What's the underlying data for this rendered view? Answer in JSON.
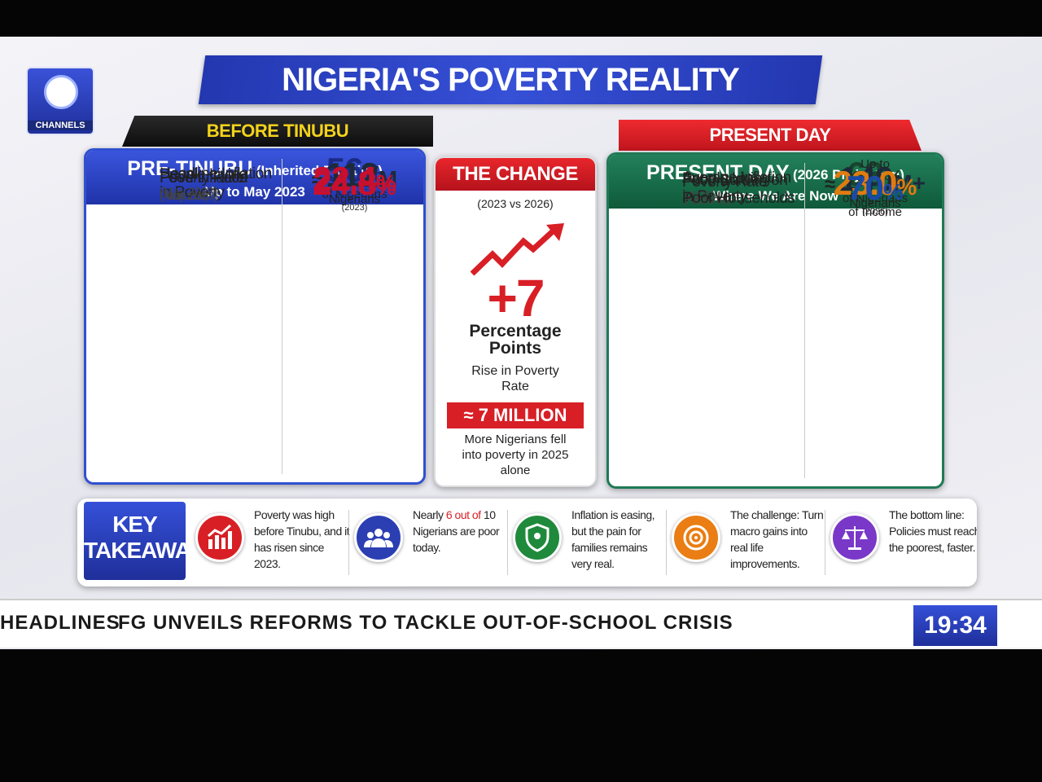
{
  "logo": {
    "label": "CHANNELS"
  },
  "header": {
    "title": "NIGERIA'S POVERTY REALITY"
  },
  "before": {
    "banner": "BEFORE TINUBU",
    "title": "PRE-TINUBU",
    "title_note": "(Inherited Position)",
    "subtitle": "Up to May 2023",
    "rows": [
      {
        "label": [
          "Poverty Rate"
        ],
        "sub": "(National)",
        "value": "56",
        "unit": "%",
        "notes": [
          "of Nigerians",
          "(2023)"
        ],
        "icon_color": "#2b3fb3",
        "value_color": "#1b2b86"
      },
      {
        "label": [
          "People Living",
          "in Poverty"
        ],
        "prefix": "≈",
        "value": "112",
        "unit": "M",
        "notes": [
          "Nigerians"
        ],
        "icon_color": "#1f8a3c",
        "value_color": "#1d2a3a"
      },
      {
        "label": [
          "Headline Inflation"
        ],
        "sub": "(May 2023)",
        "value": "22.4",
        "unit": "%",
        "notes": [],
        "icon_color": "#ea7d13",
        "value_color": "#c8102e"
      },
      {
        "label": [
          "Food Inflation"
        ],
        "sub": "(May 2023)",
        "value": "24.8",
        "unit": "%",
        "notes": [],
        "icon_color": "#d81f26",
        "value_color": "#c8102e"
      }
    ]
  },
  "change": {
    "title": "THE CHANGE",
    "subtitle": "(2023 vs 2026)",
    "big": "+7",
    "big_text": [
      "Percentage",
      "Points"
    ],
    "rise_text": [
      "Rise in Poverty",
      "Rate"
    ],
    "badge": "≈ 7 MILLION",
    "note": [
      "More Nigerians fell",
      "into poverty in 2025",
      "alone"
    ]
  },
  "present": {
    "banner": "PRESENT DAY",
    "title": "PRESENT DAY",
    "title_note": "(2026 Projection)",
    "subtitle": "Where We Are Now",
    "rows": [
      {
        "label": [
          "Poverty Rate"
        ],
        "sub": "(National)",
        "value": "63",
        "unit": "%",
        "notes": [
          "of Nigerians",
          "(2026)"
        ],
        "icon_color": "#1c5e3b",
        "value_color": "#17452e"
      },
      {
        "label": [
          "People Living",
          "in Poverty"
        ],
        "prefix": "≈",
        "value": "140",
        "unit": "M+",
        "notes": [
          "Nigerians"
        ],
        "icon_color": "#6a2fb0",
        "value_color": "#1d2a3a"
      },
      {
        "label": [
          "Average Inflation"
        ],
        "sub": "(2025)",
        "value": "23.0",
        "unit": "%",
        "notes": [],
        "icon_color": "#ea7d13",
        "value_color": "#e07b10"
      },
      {
        "label": [
          "Food Burden on",
          "Poor Households"
        ],
        "pre": "Up to",
        "value": "70",
        "unit": "%",
        "notes": [
          "of Income"
        ],
        "icon_color": "#2d8fd6",
        "value_color": "#1a4aa8"
      }
    ]
  },
  "takeaway": {
    "label": [
      "KEY",
      "TAKEAWAY"
    ],
    "items": [
      {
        "text": "Poverty was high before Tinubu, and it has risen since 2023.",
        "icon_color": "#d81f26"
      },
      {
        "before": "Nearly",
        "highlight": "6 out of",
        "after": "10 Nigerians are poor today.",
        "icon_color": "#2b3fb3"
      },
      {
        "text": "Inflation is easing, but the pain for families remains very real.",
        "icon_color": "#1f8a3c"
      },
      {
        "text": "The challenge: Turn macro gains into real life improvements.",
        "icon_color": "#ea7d13"
      },
      {
        "text": "The bottom line: Policies must reach the poorest, faster.",
        "icon_color": "#7a38c8"
      }
    ]
  },
  "ticker": {
    "section": "HEADLINES",
    "text": "FG UNVEILS REFORMS TO TACKLE OUT-OF-SCHOOL CRISIS",
    "time": "19:34"
  }
}
